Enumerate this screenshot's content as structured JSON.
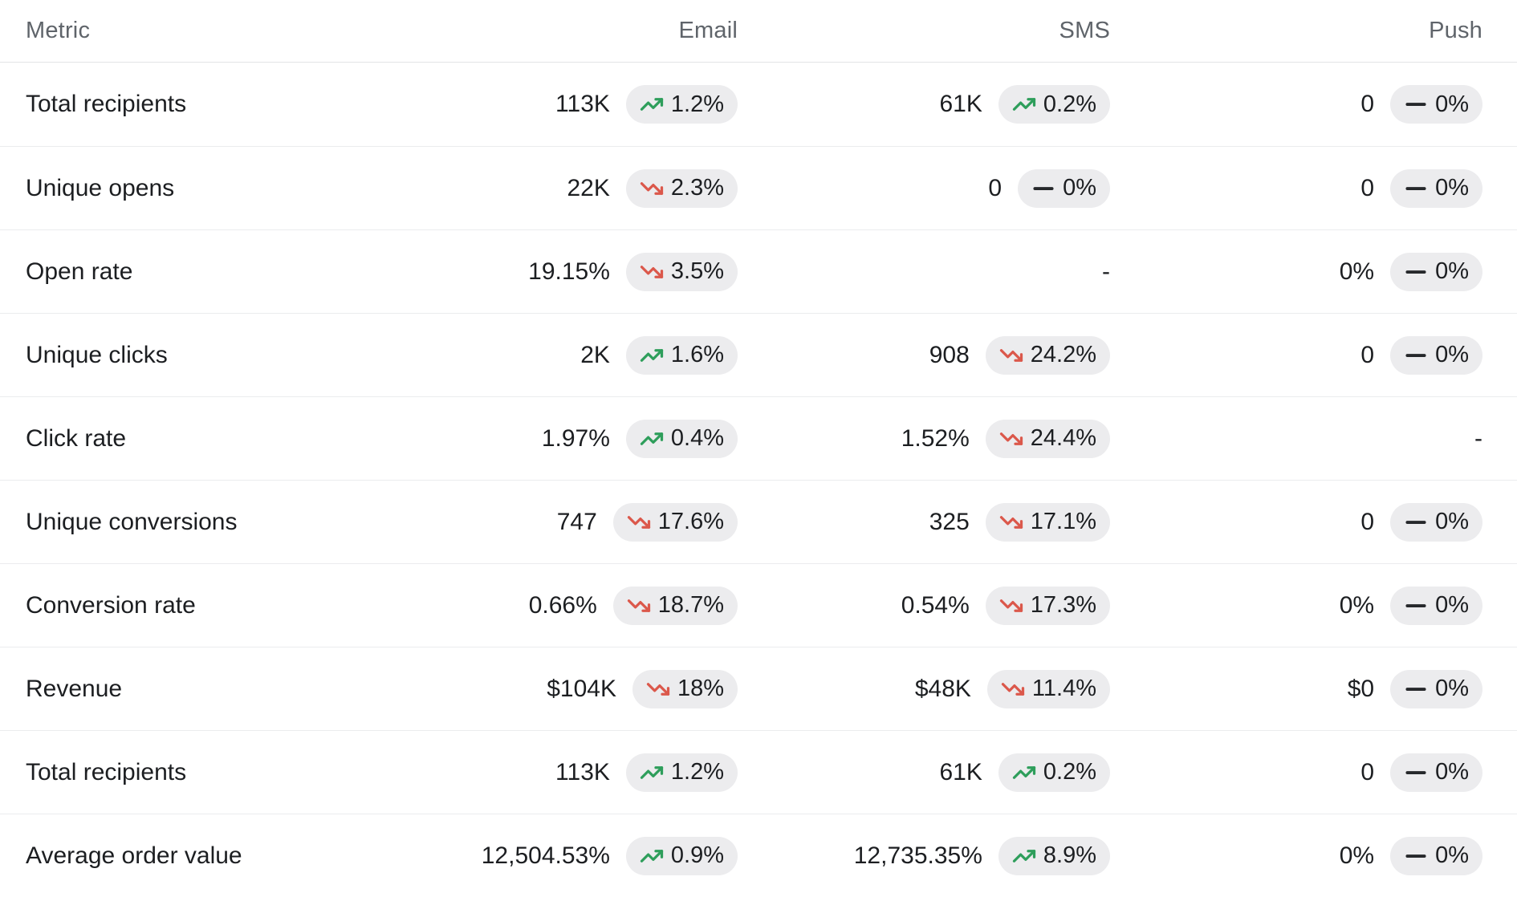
{
  "table": {
    "headers": [
      {
        "key": "metric",
        "label": "Metric"
      },
      {
        "key": "email",
        "label": "Email"
      },
      {
        "key": "sms",
        "label": "SMS"
      },
      {
        "key": "push",
        "label": "Push"
      }
    ],
    "rows": [
      {
        "metric": "Total recipients",
        "email": {
          "value": "113K",
          "trend": "up",
          "change": "1.2%"
        },
        "sms": {
          "value": "61K",
          "trend": "up",
          "change": "0.2%"
        },
        "push": {
          "value": "0",
          "trend": "flat",
          "change": "0%"
        }
      },
      {
        "metric": "Unique opens",
        "email": {
          "value": "22K",
          "trend": "down",
          "change": "2.3%"
        },
        "sms": {
          "value": "0",
          "trend": "flat",
          "change": "0%"
        },
        "push": {
          "value": "0",
          "trend": "flat",
          "change": "0%"
        }
      },
      {
        "metric": "Open rate",
        "email": {
          "value": "19.15%",
          "trend": "down",
          "change": "3.5%"
        },
        "sms": {
          "value": "-"
        },
        "push": {
          "value": "0%",
          "trend": "flat",
          "change": "0%"
        }
      },
      {
        "metric": "Unique clicks",
        "email": {
          "value": "2K",
          "trend": "up",
          "change": "1.6%"
        },
        "sms": {
          "value": "908",
          "trend": "down",
          "change": "24.2%"
        },
        "push": {
          "value": "0",
          "trend": "flat",
          "change": "0%"
        }
      },
      {
        "metric": "Click rate",
        "email": {
          "value": "1.97%",
          "trend": "up",
          "change": "0.4%"
        },
        "sms": {
          "value": "1.52%",
          "trend": "down",
          "change": "24.4%"
        },
        "push": {
          "value": "-"
        }
      },
      {
        "metric": "Unique conversions",
        "email": {
          "value": "747",
          "trend": "down",
          "change": "17.6%"
        },
        "sms": {
          "value": "325",
          "trend": "down",
          "change": "17.1%"
        },
        "push": {
          "value": "0",
          "trend": "flat",
          "change": "0%"
        }
      },
      {
        "metric": "Conversion rate",
        "email": {
          "value": "0.66%",
          "trend": "down",
          "change": "18.7%"
        },
        "sms": {
          "value": "0.54%",
          "trend": "down",
          "change": "17.3%"
        },
        "push": {
          "value": "0%",
          "trend": "flat",
          "change": "0%"
        }
      },
      {
        "metric": "Revenue",
        "email": {
          "value": "$104K",
          "trend": "down",
          "change": "18%"
        },
        "sms": {
          "value": "$48K",
          "trend": "down",
          "change": "11.4%"
        },
        "push": {
          "value": "$0",
          "trend": "flat",
          "change": "0%"
        }
      },
      {
        "metric": "Total recipients",
        "email": {
          "value": "113K",
          "trend": "up",
          "change": "1.2%"
        },
        "sms": {
          "value": "61K",
          "trend": "up",
          "change": "0.2%"
        },
        "push": {
          "value": "0",
          "trend": "flat",
          "change": "0%"
        }
      },
      {
        "metric": "Average order value",
        "email": {
          "value": "12,504.53%",
          "trend": "up",
          "change": "0.9%"
        },
        "sms": {
          "value": "12,735.35%",
          "trend": "up",
          "change": "8.9%"
        },
        "push": {
          "value": "0%",
          "trend": "flat",
          "change": "0%"
        }
      }
    ]
  },
  "colors": {
    "text": "#1c1e21",
    "header_text": "#5f646a",
    "divider": "#ebecee",
    "divider_strong": "#e3e4e6",
    "badge_bg": "#ececee",
    "trend_up": "#2e9e5b",
    "trend_down": "#db584b",
    "trend_flat": "#26282b"
  }
}
